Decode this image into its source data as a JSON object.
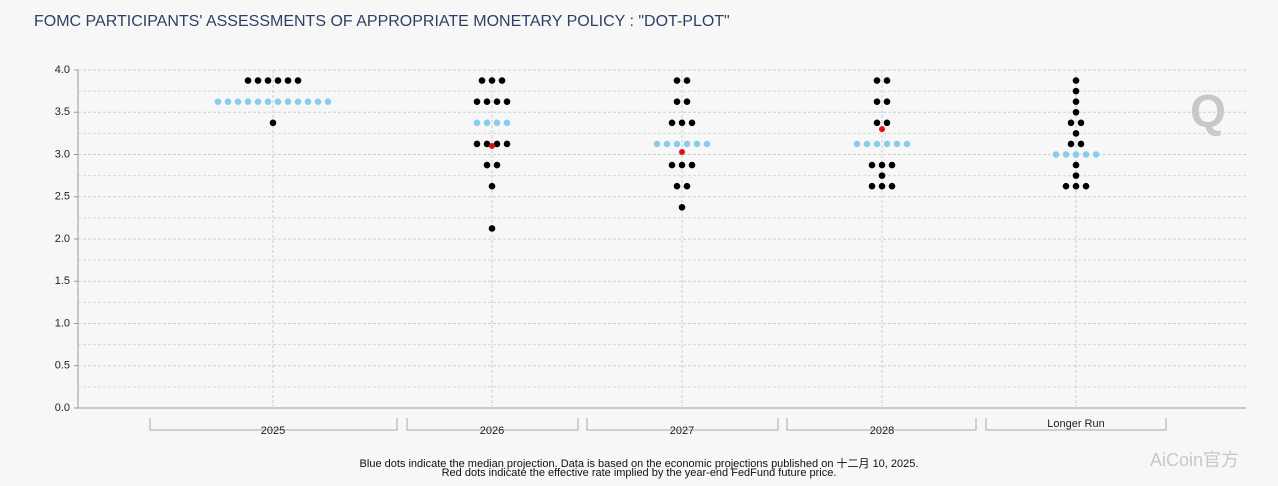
{
  "chart_data": {
    "type": "dot-plot",
    "title": "FOMC PARTICIPANTS' ASSESSMENTS OF APPROPRIATE MONETARY POLICY : \"DOT-PLOT\"",
    "ylim": [
      0,
      4
    ],
    "yticks": [
      {
        "value": 0,
        "label": "0.0"
      },
      {
        "value": 0.5,
        "label": "0.5"
      },
      {
        "value": 1,
        "label": "1.0"
      },
      {
        "value": 1.5,
        "label": "1.5"
      },
      {
        "value": 2,
        "label": "2.0"
      },
      {
        "value": 2.5,
        "label": "2.5"
      },
      {
        "value": 3,
        "label": "3.0"
      },
      {
        "value": 3.5,
        "label": "3.5"
      },
      {
        "value": 4,
        "label": "4.0"
      }
    ],
    "minor_yticks": [
      0.25,
      0.75,
      1.25,
      1.75,
      2.25,
      2.75,
      3.25,
      3.75
    ],
    "grid": true,
    "dot_color": "#000000",
    "median_color": "#87ceeb",
    "implied_color": "#e01010",
    "series": [
      {
        "name": "2025",
        "median": 3.625,
        "implied_rate": null,
        "levels": [
          {
            "value": 3.875,
            "count": 6
          },
          {
            "value": 3.625,
            "count": 12
          },
          {
            "value": 3.375,
            "count": 1
          }
        ]
      },
      {
        "name": "2026",
        "median": 3.375,
        "implied_rate": 3.1,
        "levels": [
          {
            "value": 3.875,
            "count": 3
          },
          {
            "value": 3.625,
            "count": 4
          },
          {
            "value": 3.375,
            "count": 4
          },
          {
            "value": 3.125,
            "count": 4
          },
          {
            "value": 2.875,
            "count": 2
          },
          {
            "value": 2.625,
            "count": 1
          },
          {
            "value": 2.125,
            "count": 1
          }
        ]
      },
      {
        "name": "2027",
        "median": 3.125,
        "implied_rate": 3.03,
        "levels": [
          {
            "value": 3.875,
            "count": 2
          },
          {
            "value": 3.625,
            "count": 2
          },
          {
            "value": 3.375,
            "count": 3
          },
          {
            "value": 3.125,
            "count": 6
          },
          {
            "value": 2.875,
            "count": 3
          },
          {
            "value": 2.625,
            "count": 2
          },
          {
            "value": 2.375,
            "count": 1
          }
        ]
      },
      {
        "name": "2028",
        "median": 3.125,
        "implied_rate": 3.3,
        "levels": [
          {
            "value": 3.875,
            "count": 2
          },
          {
            "value": 3.625,
            "count": 2
          },
          {
            "value": 3.375,
            "count": 2
          },
          {
            "value": 3.125,
            "count": 6
          },
          {
            "value": 2.875,
            "count": 3
          },
          {
            "value": 2.75,
            "count": 1
          },
          {
            "value": 2.625,
            "count": 3
          }
        ]
      },
      {
        "name": "Longer Run",
        "median": 3.0,
        "implied_rate": null,
        "levels": [
          {
            "value": 3.875,
            "count": 1
          },
          {
            "value": 3.75,
            "count": 1
          },
          {
            "value": 3.625,
            "count": 1
          },
          {
            "value": 3.5,
            "count": 1
          },
          {
            "value": 3.375,
            "count": 2
          },
          {
            "value": 3.25,
            "count": 1
          },
          {
            "value": 3.125,
            "count": 2
          },
          {
            "value": 3.0,
            "count": 5
          },
          {
            "value": 2.875,
            "count": 1
          },
          {
            "value": 2.75,
            "count": 1
          },
          {
            "value": 2.625,
            "count": 3
          }
        ]
      }
    ],
    "footnotes": [
      "Blue dots indicate the median projection. Data is based on the economic projections published on 十二月 10, 2025.",
      "Red dots indicate the effective rate implied by the year-end FedFund future price."
    ],
    "logo": "Q",
    "watermark": "AiCoin官方"
  }
}
